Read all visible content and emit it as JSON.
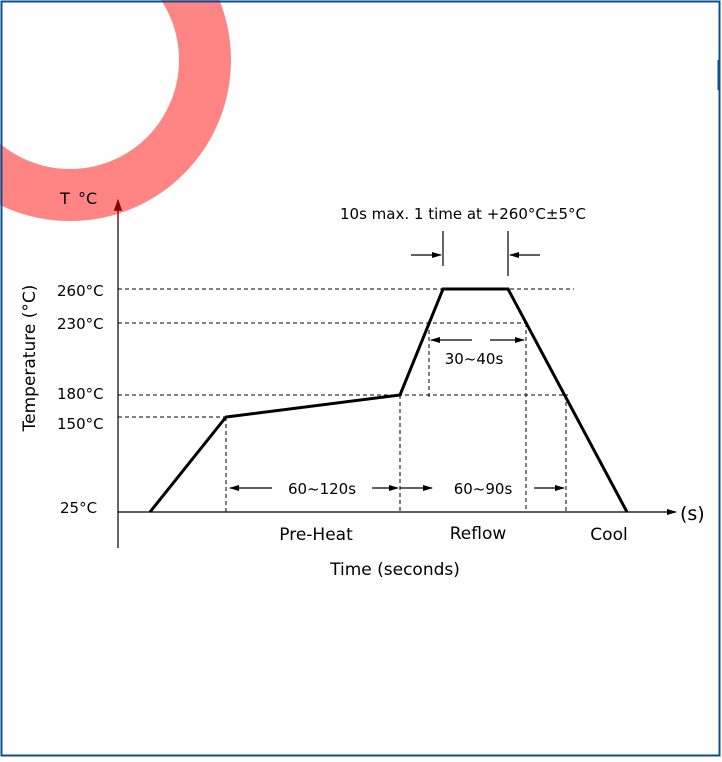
{
  "colors": {
    "border": "#0b4f8f",
    "watermark": "#ff8585",
    "axis_arrow": "#8b0000",
    "ink": "#000000"
  },
  "diagram": {
    "axis_unit_top": "T",
    "axis_unit_degree": "°C",
    "y_axis_label": "Temperature (°C)",
    "x_axis_label": "Time (seconds)",
    "x_axis_unit": "(s)",
    "temperature_labels": [
      "260°C",
      "230°C",
      "180°C",
      "150°C",
      "25°C"
    ],
    "peak_note": "10s max. 1 time at +260°C±5°C",
    "intervals": {
      "preheat_time": "60~120s",
      "reflow_time": "60~90s",
      "peak_time": "30~40s"
    },
    "phases": [
      "Pre-Heat",
      "Reflow",
      "Cool"
    ]
  }
}
